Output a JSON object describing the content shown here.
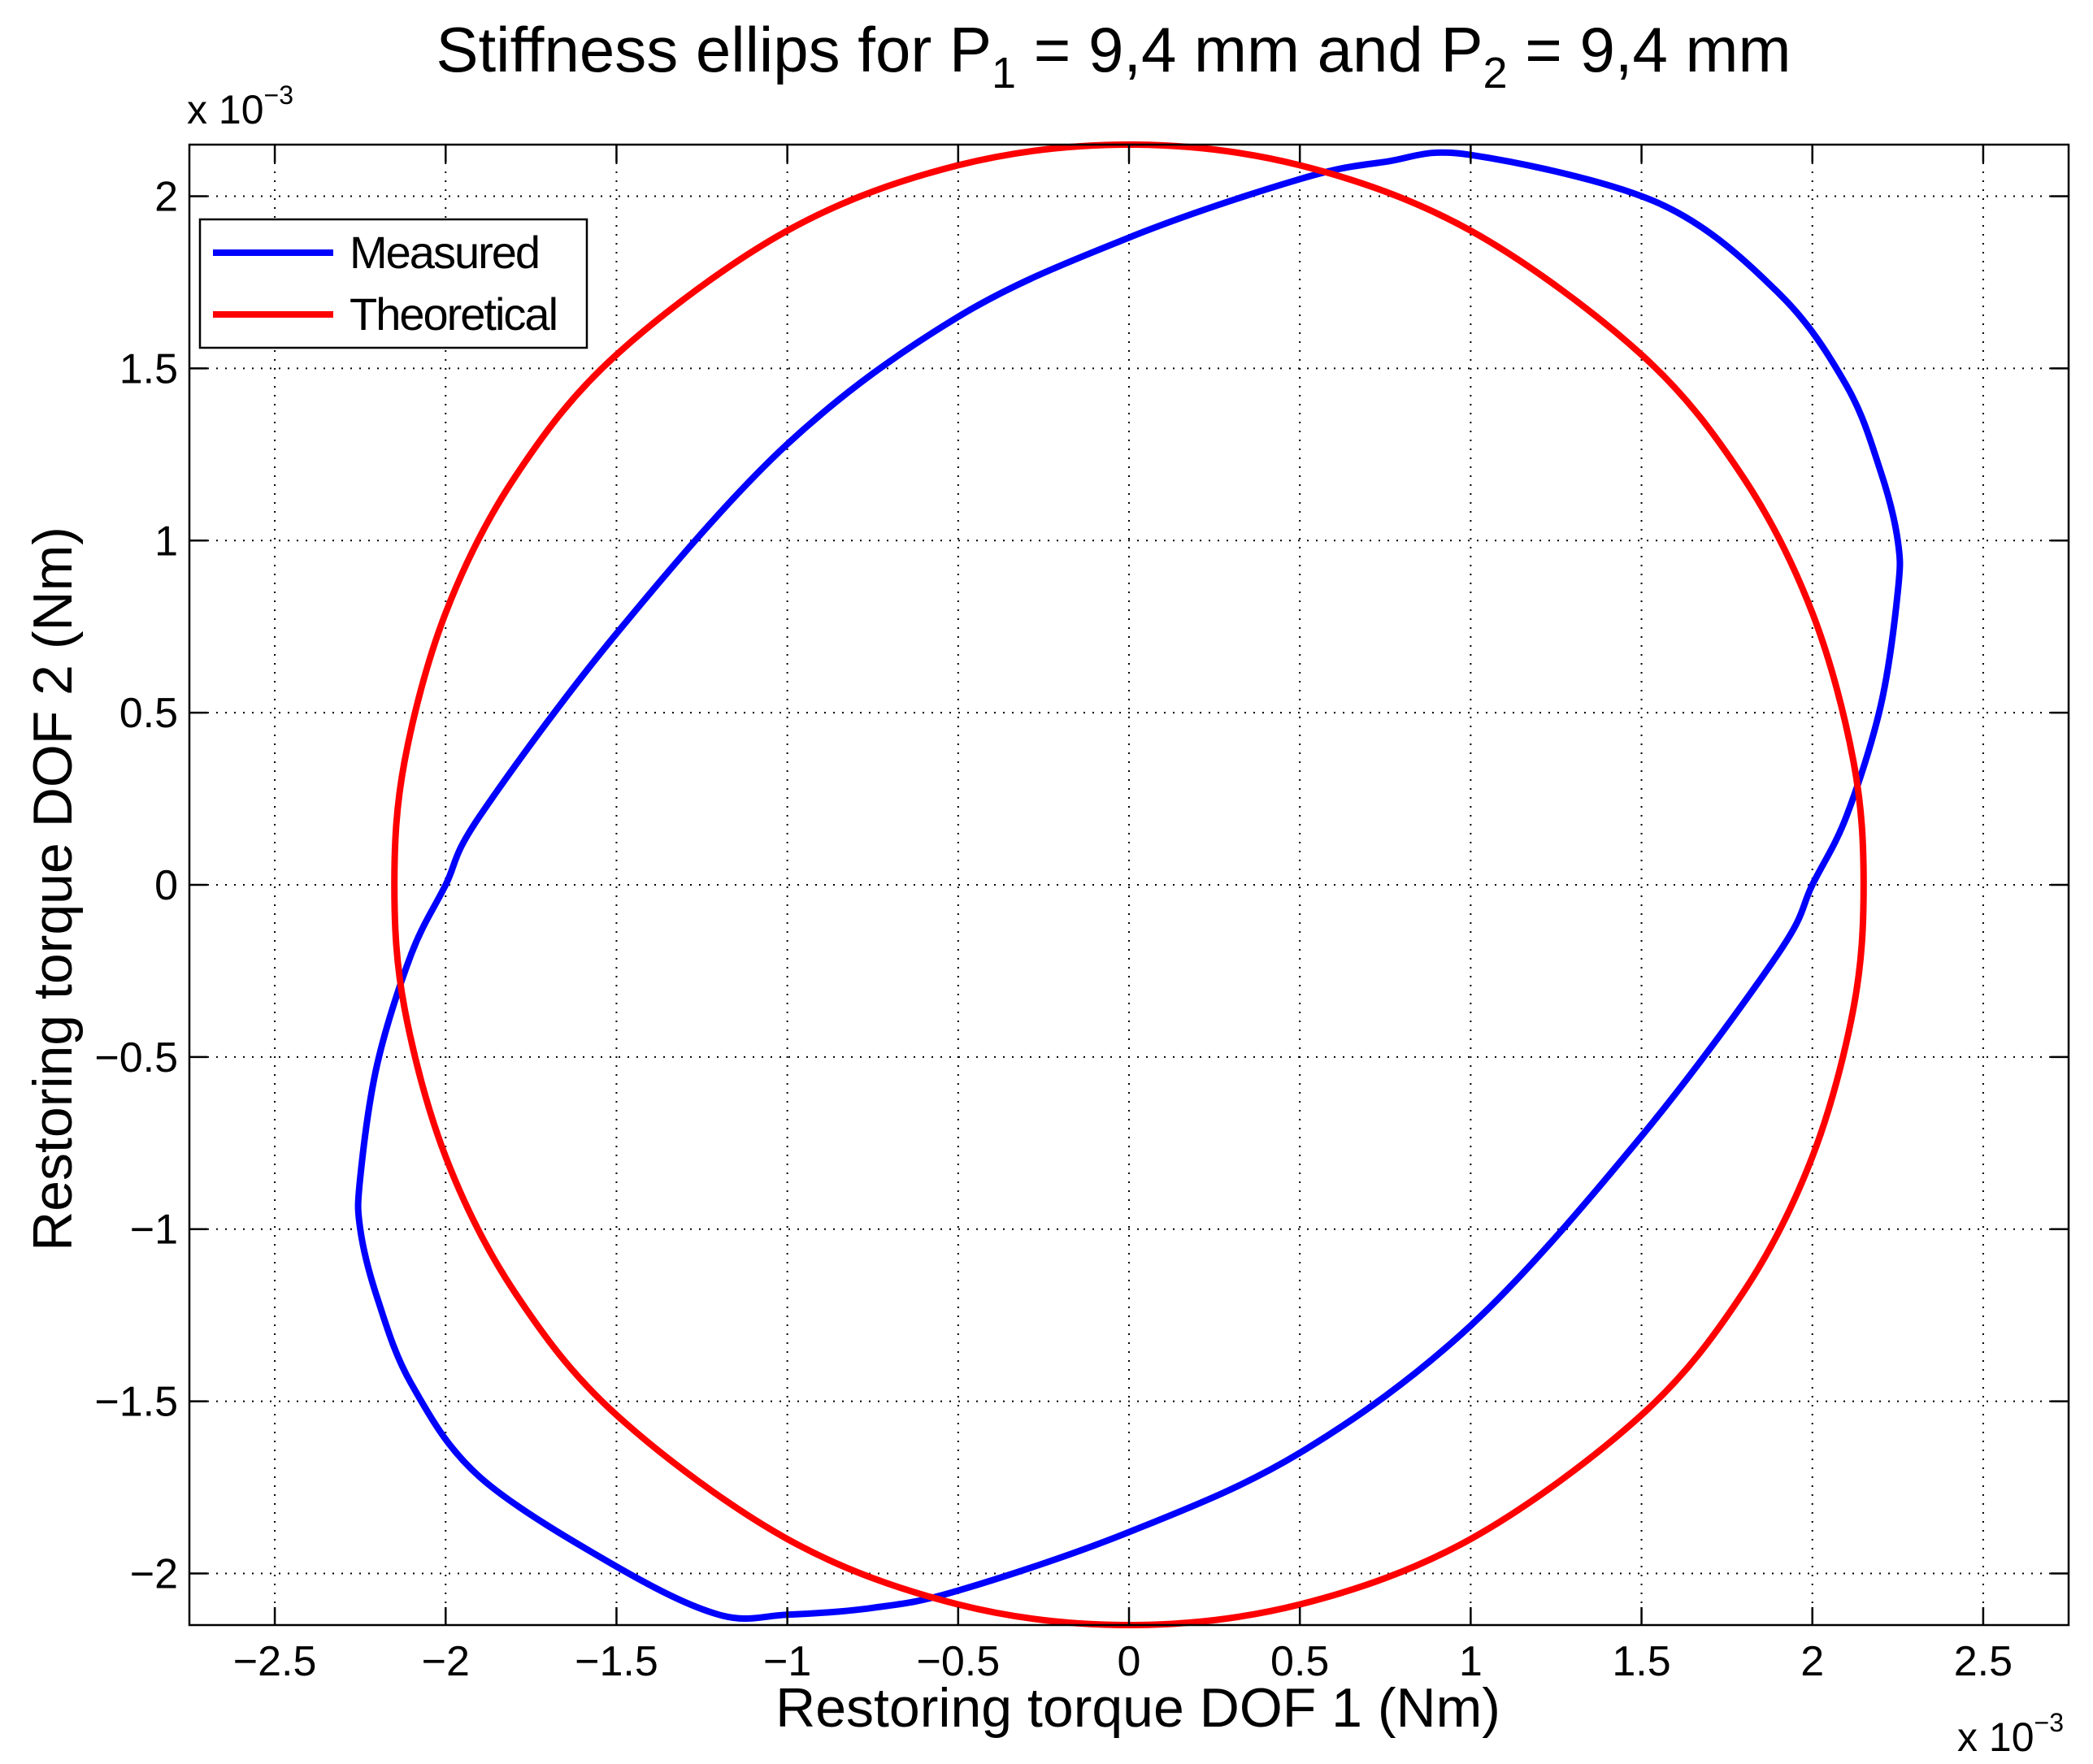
{
  "chart_data": {
    "type": "line",
    "title": {
      "prefix": "Stiffness ellips for P",
      "sub1": "1",
      "middle": " = 9,4 mm and P",
      "sub2": "2",
      "suffix": " = 9,4 mm"
    },
    "xlabel": "Restoring torque DOF 1 (Nm)",
    "ylabel": "Restoring torque DOF 2 (Nm)",
    "multiplier": {
      "base": "x 10",
      "exponent": "−3"
    },
    "xlim": [
      -2.75,
      2.75
    ],
    "ylim": [
      -2.15,
      2.15
    ],
    "scale": 0.001,
    "xticks": [
      -2.5,
      -2,
      -1.5,
      -1,
      -0.5,
      0,
      0.5,
      1,
      1.5,
      2,
      2.5
    ],
    "xtick_labels": [
      "−2.5",
      "−2",
      "−1.5",
      "−1",
      "−0.5",
      "0",
      "0.5",
      "1",
      "1.5",
      "2",
      "2.5"
    ],
    "yticks": [
      -2,
      -1.5,
      -1,
      -0.5,
      0,
      0.5,
      1,
      1.5,
      2
    ],
    "ytick_labels": [
      "−2",
      "−1.5",
      "−1",
      "−0.5",
      "0",
      "0.5",
      "1",
      "1.5",
      "2"
    ],
    "grid": true,
    "legend_position": "top-left",
    "series": [
      {
        "name": "Measured",
        "color": "#0000ff",
        "shape": "ellipse",
        "x": [
          1.0,
          1.55,
          1.9,
          2.1,
          2.2,
          2.25,
          2.25,
          2.2,
          2.1,
          2.0,
          1.9,
          1.5,
          1.0,
          0.5,
          0.0,
          -0.5,
          -0.75,
          -1.0,
          -1.2,
          -1.5,
          -1.9,
          -2.1,
          -2.2,
          -2.25,
          -2.25,
          -2.2,
          -2.1,
          -2.0,
          -1.9,
          -1.5,
          -1.0,
          -0.5,
          0.0,
          0.5,
          0.75,
          1.0
        ],
        "y": [
          2.12,
          1.98,
          1.72,
          1.45,
          1.2,
          1.0,
          0.85,
          0.52,
          0.2,
          0.0,
          -0.2,
          -0.73,
          -1.28,
          -1.65,
          -1.88,
          -2.05,
          -2.1,
          -2.12,
          -2.12,
          -1.98,
          -1.72,
          -1.45,
          -1.2,
          -1.0,
          -0.85,
          -0.52,
          -0.2,
          0.0,
          0.2,
          0.73,
          1.28,
          1.65,
          1.88,
          2.05,
          2.1,
          2.12
        ]
      },
      {
        "name": "Theoretical",
        "color": "#ff0000",
        "shape": "ellipse",
        "x": [
          0.0,
          0.5,
          1.0,
          1.5,
          1.8,
          2.0,
          2.12,
          2.15,
          2.12,
          2.0,
          1.8,
          1.5,
          1.0,
          0.5,
          0.0,
          -0.5,
          -1.0,
          -1.5,
          -1.8,
          -2.0,
          -2.12,
          -2.15,
          -2.12,
          -2.0,
          -1.8,
          -1.5,
          -1.0,
          -0.5,
          0.0
        ],
        "y": [
          2.15,
          2.09,
          1.9,
          1.54,
          1.18,
          0.79,
          0.36,
          0.0,
          -0.36,
          -0.79,
          -1.18,
          -1.54,
          -1.9,
          -2.09,
          -2.15,
          -2.09,
          -1.9,
          -1.54,
          -1.18,
          -0.79,
          -0.36,
          0.0,
          0.36,
          0.79,
          1.18,
          1.54,
          1.9,
          2.09,
          2.15
        ]
      }
    ]
  }
}
